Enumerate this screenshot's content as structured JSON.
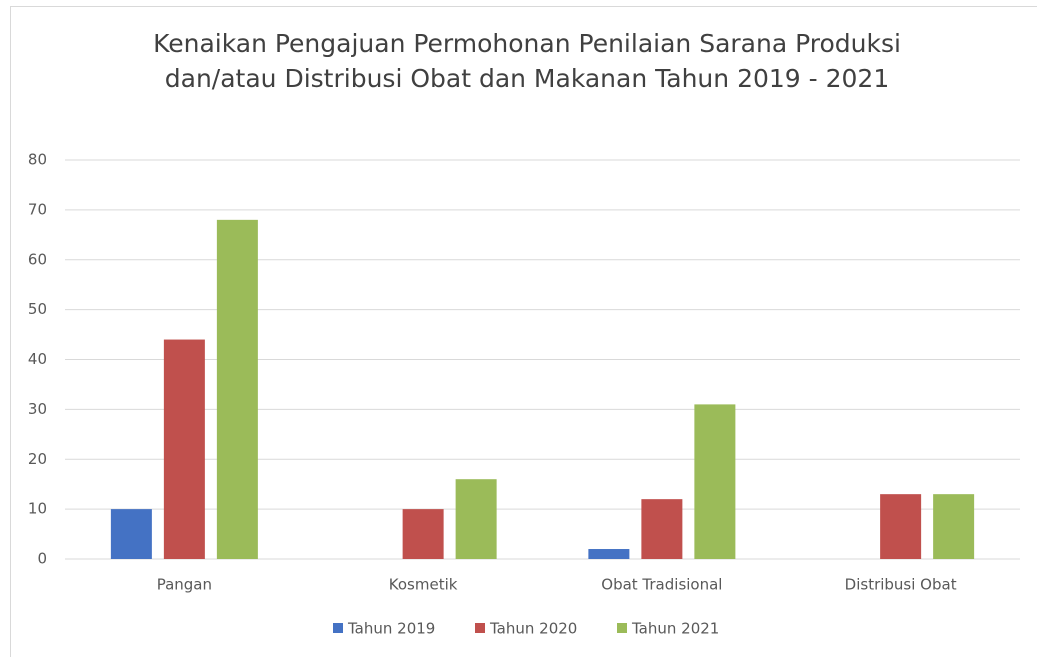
{
  "chart_data": {
    "type": "bar",
    "title": [
      "Kenaikan Pengajuan Permohonan Penilaian Sarana Produksi",
      "dan/atau Distribusi Obat dan Makanan Tahun 2019 - 2021"
    ],
    "categories": [
      "Pangan",
      "Kosmetik",
      "Obat Tradisional",
      "Distribusi Obat"
    ],
    "series": [
      {
        "name": "Tahun 2019",
        "color": "#4472c4",
        "values": [
          10,
          0,
          2,
          0
        ]
      },
      {
        "name": "Tahun 2020",
        "color": "#c0504d",
        "values": [
          44,
          10,
          12,
          13
        ]
      },
      {
        "name": "Tahun 2021",
        "color": "#9bbb59",
        "values": [
          68,
          16,
          31,
          13
        ]
      }
    ],
    "ylim": [
      0,
      80
    ],
    "yticks": [
      0,
      10,
      20,
      30,
      40,
      50,
      60,
      70,
      80
    ],
    "grid": true,
    "legend": "bottom"
  }
}
